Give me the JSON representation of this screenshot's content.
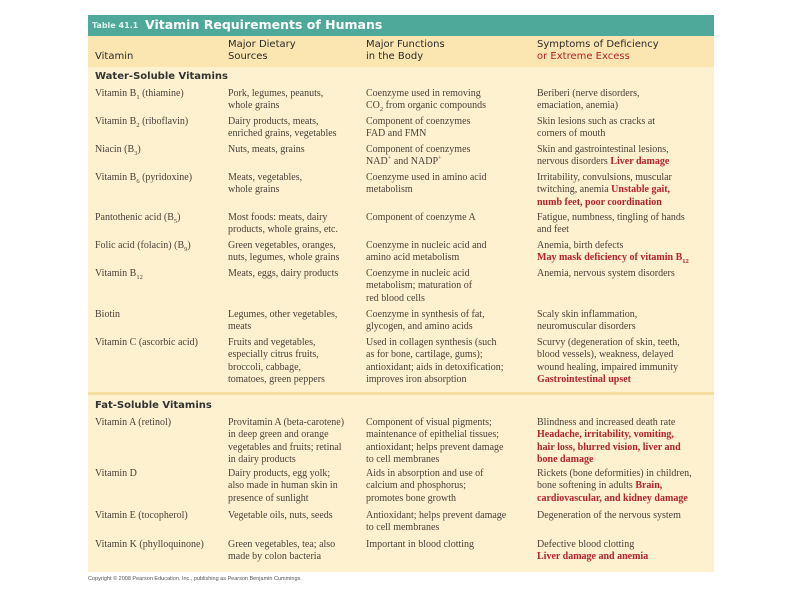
{
  "title": {
    "number": "Table 41.1",
    "text": "Vitamin Requirements of Humans"
  },
  "headers": {
    "vitamin": "Vitamin",
    "sources_l1": "Major Dietary",
    "sources_l2": "Sources",
    "functions_l1": "Major Functions",
    "functions_l2": "in the Body",
    "symptoms_l1": "Symptoms of Deficiency",
    "symptoms_l2": "or Extreme Excess"
  },
  "colors": {
    "title_bar": "#4fa99b",
    "excess_red": "#b3242c",
    "body_bg": "#fdf1cf"
  },
  "sections": [
    {
      "label": "Water-Soluble Vitamins",
      "rows": [
        {
          "vitamin": [
            {
              "t": "Vitamin B"
            },
            {
              "t": "1",
              "sub": true
            },
            {
              "t": " (thiamine)"
            }
          ],
          "sources": [
            {
              "t": "Pork, legumes, peanuts,\nwhole grains"
            }
          ],
          "functions": [
            {
              "t": "Coenzyme used in removing\nCO"
            },
            {
              "t": "2",
              "sub": true
            },
            {
              "t": " from organic compounds"
            }
          ],
          "symptoms": [
            {
              "t": "Beriberi (nerve disorders,\nemaciation, anemia)"
            }
          ]
        },
        {
          "vitamin": [
            {
              "t": "Vitamin B"
            },
            {
              "t": "2",
              "sub": true
            },
            {
              "t": " (riboflavin)"
            }
          ],
          "sources": [
            {
              "t": "Dairy products, meats,\nenriched grains, vegetables"
            }
          ],
          "functions": [
            {
              "t": "Component of coenzymes\nFAD and FMN"
            }
          ],
          "symptoms": [
            {
              "t": "Skin lesions such as cracks at\ncorners of mouth"
            }
          ]
        },
        {
          "vitamin": [
            {
              "t": "Niacin (B"
            },
            {
              "t": "3",
              "sub": true
            },
            {
              "t": ")"
            }
          ],
          "sources": [
            {
              "t": "Nuts, meats, grains"
            }
          ],
          "functions": [
            {
              "t": "Component of coenzymes\nNAD"
            },
            {
              "t": "+",
              "sup": true
            },
            {
              "t": " and NADP"
            },
            {
              "t": "+",
              "sup": true
            }
          ],
          "symptoms": [
            {
              "t": "Skin and gastrointestinal lesions,\nnervous disorders  "
            },
            {
              "t": "Liver damage",
              "red": true
            }
          ]
        },
        {
          "vitamin": [
            {
              "t": "Vitamin B"
            },
            {
              "t": "6",
              "sub": true
            },
            {
              "t": " (pyridoxine)"
            }
          ],
          "sources": [
            {
              "t": "Meats, vegetables,\nwhole grains"
            }
          ],
          "functions": [
            {
              "t": "Coenzyme used in amino acid\nmetabolism"
            }
          ],
          "symptoms": [
            {
              "t": "Irritability, convulsions, muscular\ntwitching, anemia  "
            },
            {
              "t": "Unstable gait,\nnumb feet, poor coordination",
              "red": true
            }
          ]
        },
        {
          "vitamin": [
            {
              "t": "Pantothenic acid (B"
            },
            {
              "t": "5",
              "sub": true
            },
            {
              "t": ")"
            }
          ],
          "sources": [
            {
              "t": "Most foods: meats, dairy\nproducts, whole grains, etc."
            }
          ],
          "functions": [
            {
              "t": "Component of coenzyme A"
            }
          ],
          "symptoms": [
            {
              "t": "Fatigue, numbness, tingling of hands\nand feet"
            }
          ]
        },
        {
          "vitamin": [
            {
              "t": "Folic acid (folacin) (B"
            },
            {
              "t": "9",
              "sub": true
            },
            {
              "t": ")"
            }
          ],
          "sources": [
            {
              "t": "Green vegetables, oranges,\nnuts, legumes, whole grains"
            }
          ],
          "functions": [
            {
              "t": "Coenzyme in nucleic acid and\namino acid metabolism"
            }
          ],
          "symptoms": [
            {
              "t": "Anemia, birth defects\n"
            },
            {
              "t": "May mask deficiency of vitamin B",
              "red": true
            },
            {
              "t": "12",
              "sub": true,
              "red": true
            }
          ]
        },
        {
          "vitamin": [
            {
              "t": "Vitamin B"
            },
            {
              "t": "12",
              "sub": true
            }
          ],
          "sources": [
            {
              "t": "Meats, eggs, dairy products"
            }
          ],
          "functions": [
            {
              "t": "Coenzyme in nucleic acid\nmetabolism; maturation of\nred blood cells"
            }
          ],
          "symptoms": [
            {
              "t": "Anemia, nervous system disorders"
            }
          ]
        },
        {
          "vitamin": [
            {
              "t": "Biotin"
            }
          ],
          "sources": [
            {
              "t": "Legumes, other vegetables,\nmeats"
            }
          ],
          "functions": [
            {
              "t": "Coenzyme in synthesis of fat,\nglycogen, and amino acids"
            }
          ],
          "symptoms": [
            {
              "t": "Scaly skin inflammation,\nneuromuscular disorders"
            }
          ]
        },
        {
          "vitamin": [
            {
              "t": "Vitamin C (ascorbic acid)"
            }
          ],
          "sources": [
            {
              "t": "Fruits and vegetables,\nespecially citrus fruits,\nbroccoli, cabbage,\ntomatoes, green peppers"
            }
          ],
          "functions": [
            {
              "t": "Used in collagen synthesis (such\nas for bone, cartilage, gums);\nantioxidant; aids in detoxification;\nimproves iron absorption"
            }
          ],
          "symptoms": [
            {
              "t": "Scurvy (degeneration of skin, teeth,\nblood vessels), weakness, delayed\nwound healing, impaired immunity\n"
            },
            {
              "t": "Gastrointestinal upset",
              "red": true
            }
          ]
        }
      ]
    },
    {
      "label": "Fat-Soluble Vitamins",
      "rows": [
        {
          "vitamin": [
            {
              "t": "Vitamin A (retinol)"
            }
          ],
          "sources": [
            {
              "t": "Provitamin A (beta-carotene)\nin deep green and orange\nvegetables and fruits; retinal\nin dairy products"
            }
          ],
          "functions": [
            {
              "t": "Component of visual pigments;\nmaintenance of epithelial tissues;\nantioxidant; helps prevent damage\nto cell membranes"
            }
          ],
          "symptoms": [
            {
              "t": "Blindness and increased death rate\n"
            },
            {
              "t": "Headache, irritability, vomiting,\nhair loss, blurred vision, liver and\nbone damage",
              "red": true
            }
          ]
        },
        {
          "vitamin": [
            {
              "t": "Vitamin D"
            }
          ],
          "sources": [
            {
              "t": "Dairy products, egg yolk;\nalso made in human skin in\npresence of sunlight"
            }
          ],
          "functions": [
            {
              "t": "Aids in absorption and use of\ncalcium and phosphorus;\npromotes bone growth"
            }
          ],
          "symptoms": [
            {
              "t": "Rickets (bone deformities) in children,\nbone softening in adults  "
            },
            {
              "t": "Brain,\ncardiovascular, and kidney damage",
              "red": true
            }
          ]
        },
        {
          "vitamin": [
            {
              "t": "Vitamin E (tocopherol)"
            }
          ],
          "sources": [
            {
              "t": "Vegetable oils, nuts, seeds"
            }
          ],
          "functions": [
            {
              "t": "Antioxidant; helps prevent damage\nto cell membranes"
            }
          ],
          "symptoms": [
            {
              "t": "Degeneration of the nervous system"
            }
          ]
        },
        {
          "vitamin": [
            {
              "t": "Vitamin K (phylloquinone)"
            }
          ],
          "sources": [
            {
              "t": "Green vegetables, tea; also\nmade by colon bacteria"
            }
          ],
          "functions": [
            {
              "t": "Important in blood clotting"
            }
          ],
          "symptoms": [
            {
              "t": "Defective blood clotting\n"
            },
            {
              "t": "Liver damage and anemia",
              "red": true
            }
          ]
        }
      ]
    }
  ],
  "copyright": "Copyright © 2008 Pearson Education, Inc., publishing as Pearson Benjamin Cummings."
}
